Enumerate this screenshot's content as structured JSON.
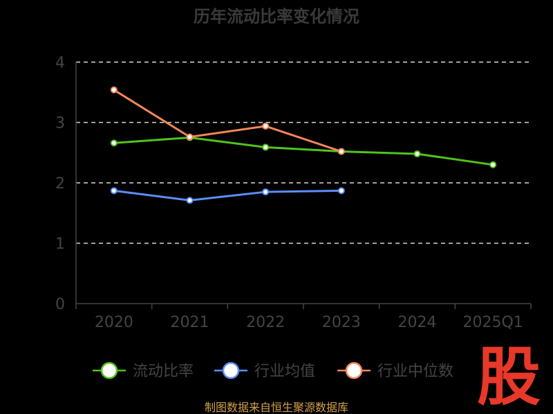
{
  "chart_data": {
    "type": "line",
    "title": "历年流动比率变化情况",
    "categories": [
      "2020",
      "2021",
      "2022",
      "2023",
      "2024",
      "2025Q1"
    ],
    "yticks": [
      "0",
      "1",
      "2",
      "3",
      "4"
    ],
    "ylim": [
      0,
      4
    ],
    "grid": true,
    "legend_position": "bottom",
    "series": [
      {
        "name": "流动比率",
        "color": "#52c41a",
        "values": [
          2.66,
          2.75,
          2.59,
          2.52,
          2.48,
          2.3
        ]
      },
      {
        "name": "行业均值",
        "color": "#5b8ff9",
        "values": [
          1.87,
          1.71,
          1.85,
          1.87,
          null,
          null
        ]
      },
      {
        "name": "行业中位数",
        "color": "#f6875a",
        "values": [
          3.54,
          2.76,
          2.94,
          2.52,
          null,
          null
        ]
      }
    ]
  },
  "source_text": "制图数据来自恒生聚源数据库",
  "watermark": "股"
}
